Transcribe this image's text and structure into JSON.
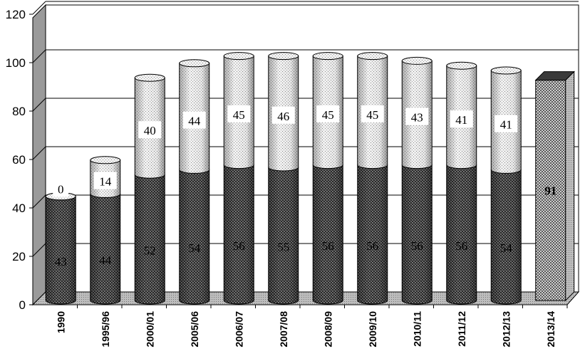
{
  "chart_data": {
    "type": "bar",
    "stacked": true,
    "three_d": true,
    "title": "",
    "xlabel": "",
    "ylabel": "",
    "ylim": [
      0,
      120
    ],
    "yticks": [
      0,
      20,
      40,
      60,
      80,
      100,
      120
    ],
    "grid": true,
    "legend": "none",
    "categories": [
      "1990",
      "1995/96",
      "2000/01",
      "2005/06",
      "2006/07",
      "2007/08",
      "2008/09",
      "2009/10",
      "2010/11",
      "2011/12",
      "2012/13",
      "2013/14"
    ],
    "series": [
      {
        "values": [
          43,
          44,
          52,
          54,
          56,
          55,
          56,
          56,
          56,
          56,
          54,
          null
        ],
        "pattern": "dark-crosshatch",
        "color": "#555555"
      },
      {
        "values": [
          0,
          14,
          40,
          44,
          45,
          46,
          45,
          45,
          43,
          41,
          41,
          null
        ],
        "pattern": "light-dots",
        "color": "#d8d8d8"
      },
      {
        "values": [
          null,
          null,
          null,
          null,
          null,
          null,
          null,
          null,
          null,
          null,
          null,
          91
        ],
        "pattern": "checkered-box",
        "color": "#9a9a9a"
      }
    ],
    "data_labels": [
      [
        "43",
        "44",
        "52",
        "54",
        "56",
        "55",
        "56",
        "56",
        "56",
        "56",
        "54",
        ""
      ],
      [
        "0",
        "14",
        "40",
        "44",
        "45",
        "46",
        "45",
        "45",
        "43",
        "41",
        "41",
        ""
      ],
      [
        "",
        "",
        "",
        "",
        "",
        "",
        "",
        "",
        "",
        "",
        "",
        "91"
      ]
    ]
  }
}
